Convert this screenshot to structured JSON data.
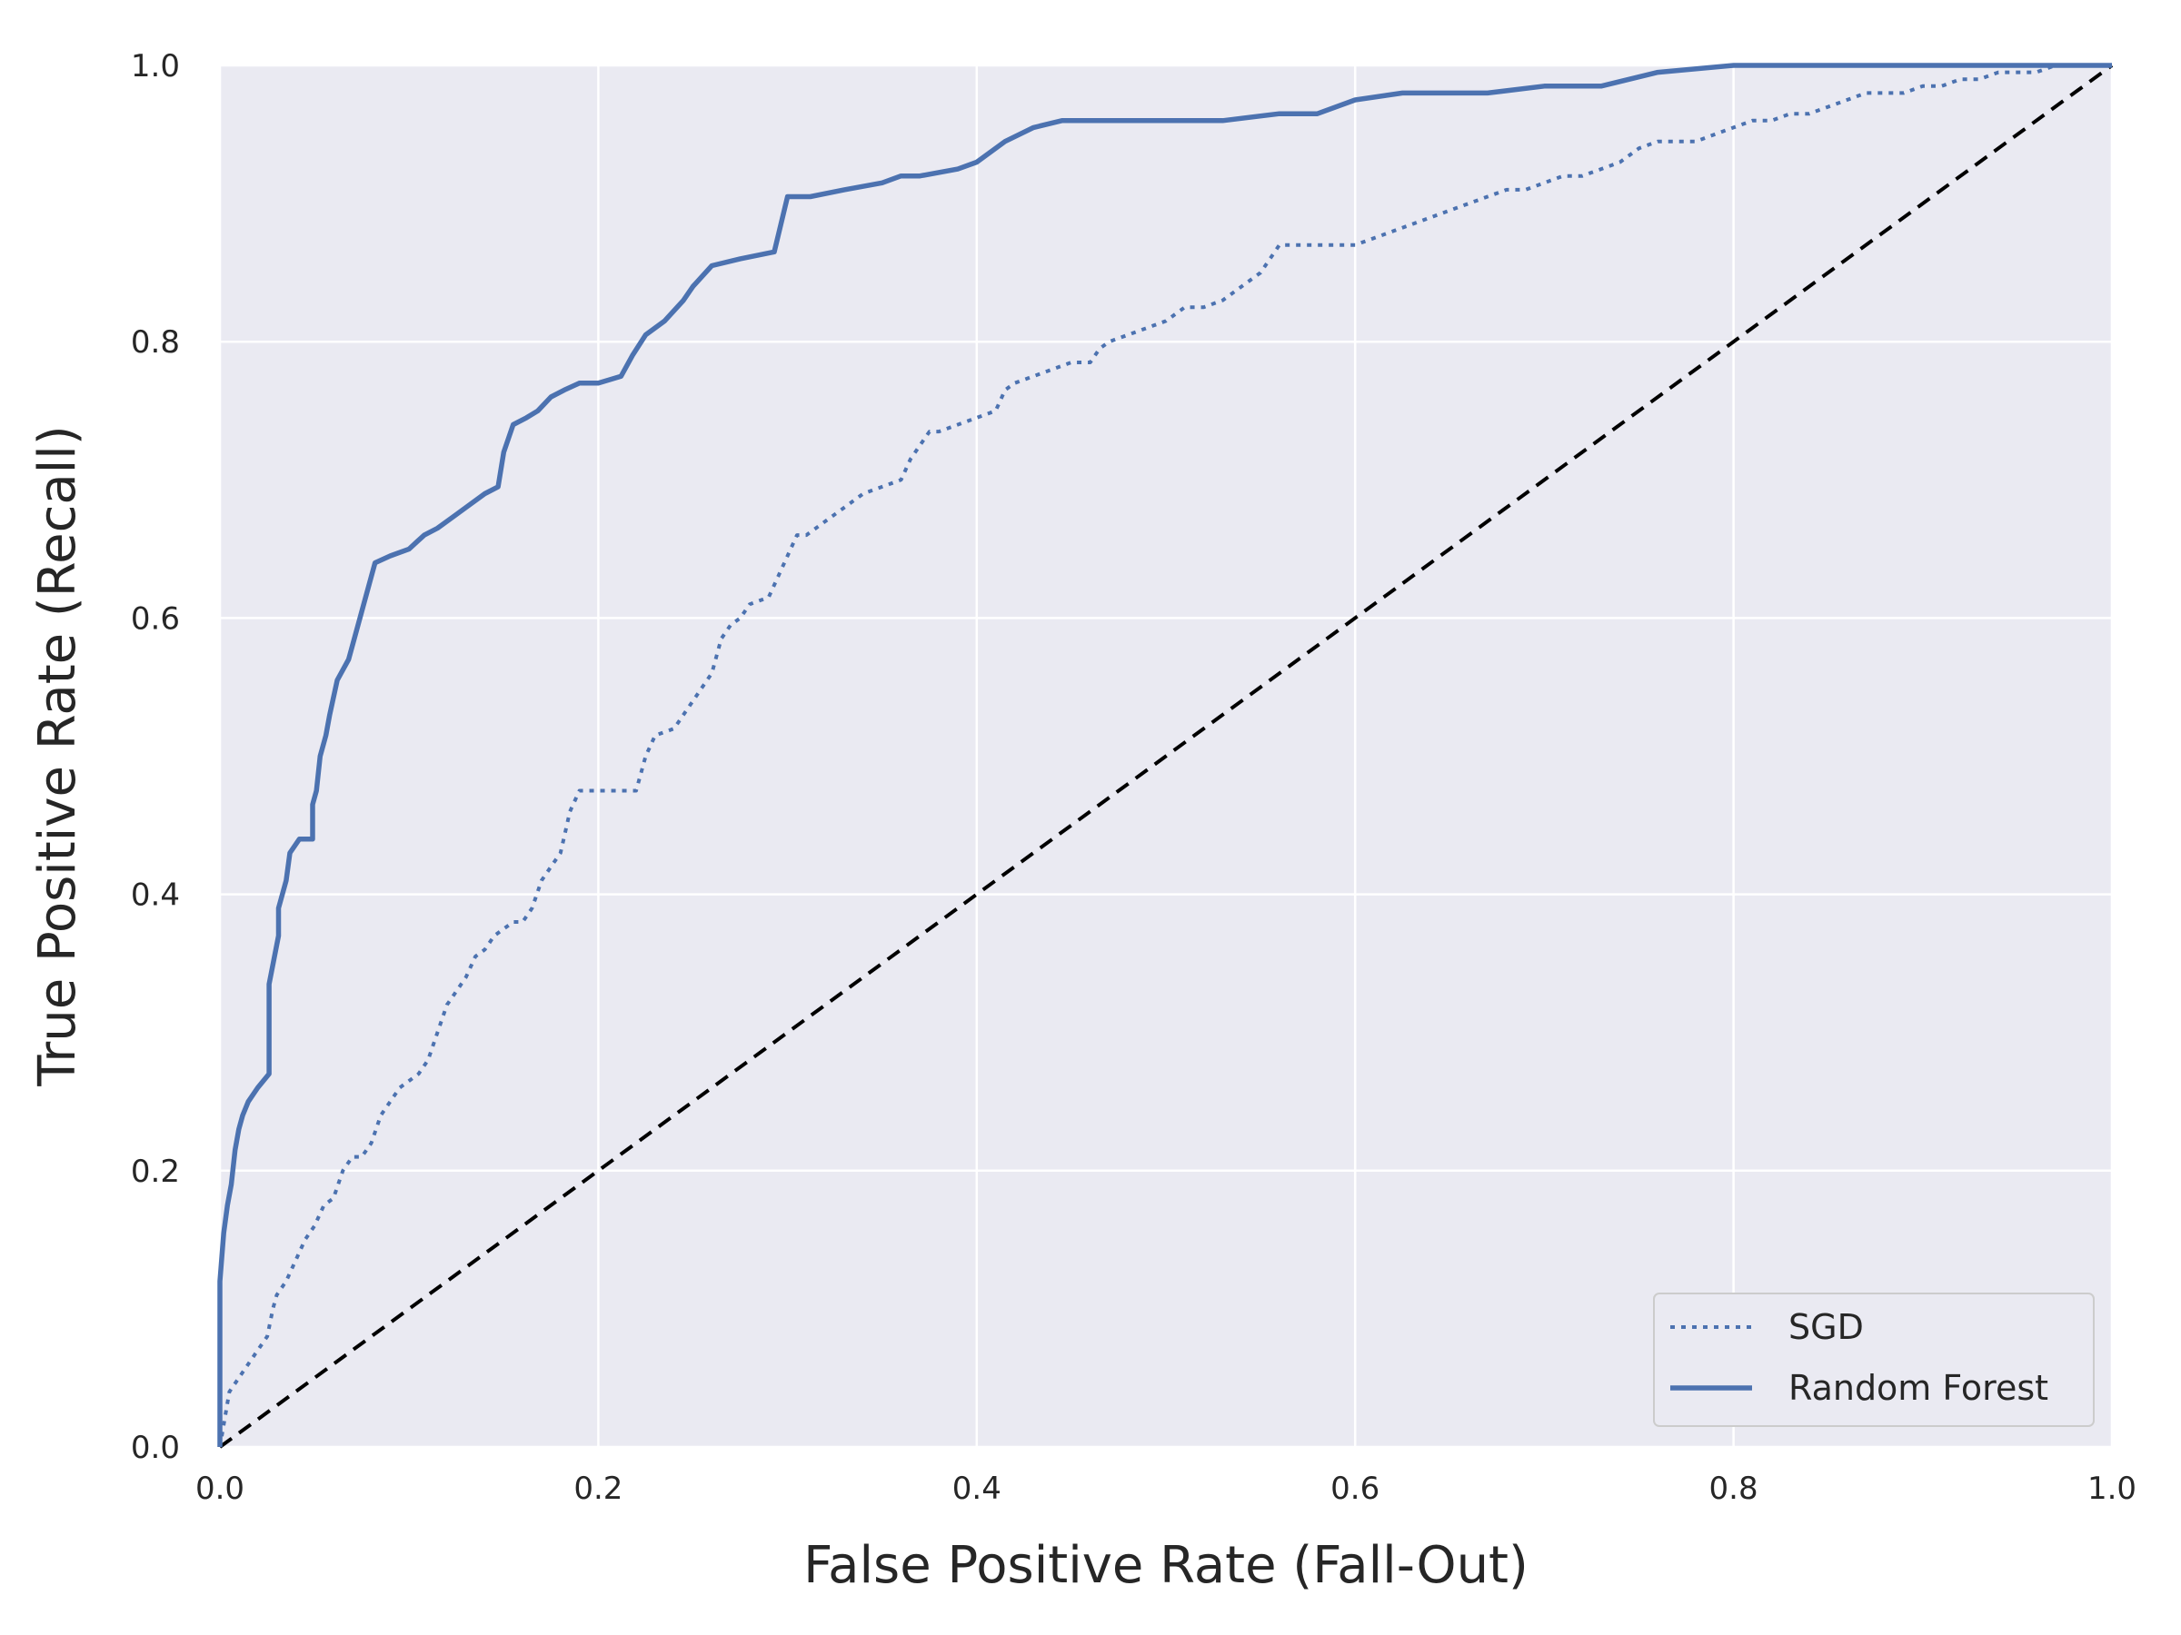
{
  "chart_data": {
    "type": "line",
    "title": "",
    "xlabel": "False Positive Rate (Fall-Out)",
    "ylabel": "True Positive Rate (Recall)",
    "xlim": [
      0,
      1
    ],
    "ylim": [
      0,
      1
    ],
    "xticks": [
      "0.0",
      "0.2",
      "0.4",
      "0.6",
      "0.8",
      "1.0"
    ],
    "yticks": [
      "0.0",
      "0.2",
      "0.4",
      "0.6",
      "0.8",
      "1.0"
    ],
    "grid": true,
    "legend_position": "lower-right",
    "colors": {
      "plot_bg": "#eaeaf2",
      "grid": "#ffffff",
      "series": "#4c72b0",
      "diagonal": "#000000"
    },
    "series": [
      {
        "name": "SGD",
        "style": "dotted",
        "x": [
          0.0,
          0.005,
          0.01,
          0.015,
          0.02,
          0.025,
          0.028,
          0.03,
          0.035,
          0.04,
          0.045,
          0.05,
          0.055,
          0.06,
          0.065,
          0.07,
          0.075,
          0.08,
          0.085,
          0.09,
          0.095,
          0.1,
          0.105,
          0.11,
          0.115,
          0.12,
          0.125,
          0.13,
          0.135,
          0.14,
          0.145,
          0.15,
          0.155,
          0.16,
          0.165,
          0.17,
          0.175,
          0.18,
          0.185,
          0.19,
          0.22,
          0.225,
          0.23,
          0.24,
          0.245,
          0.25,
          0.255,
          0.26,
          0.265,
          0.27,
          0.275,
          0.28,
          0.29,
          0.295,
          0.3,
          0.305,
          0.31,
          0.32,
          0.33,
          0.34,
          0.35,
          0.36,
          0.365,
          0.37,
          0.375,
          0.38,
          0.39,
          0.4,
          0.41,
          0.415,
          0.42,
          0.43,
          0.44,
          0.45,
          0.46,
          0.465,
          0.47,
          0.48,
          0.49,
          0.5,
          0.51,
          0.52,
          0.53,
          0.54,
          0.55,
          0.555,
          0.56,
          0.6,
          0.61,
          0.62,
          0.63,
          0.64,
          0.65,
          0.66,
          0.67,
          0.68,
          0.69,
          0.7,
          0.71,
          0.72,
          0.73,
          0.74,
          0.75,
          0.76,
          0.77,
          0.78,
          0.79,
          0.8,
          0.81,
          0.82,
          0.83,
          0.84,
          0.85,
          0.86,
          0.87,
          0.88,
          0.89,
          0.9,
          0.91,
          0.92,
          0.93,
          0.94,
          0.95,
          0.96,
          0.97,
          0.98,
          0.99,
          1.0
        ],
        "y": [
          0.0,
          0.04,
          0.05,
          0.06,
          0.07,
          0.08,
          0.1,
          0.11,
          0.12,
          0.135,
          0.15,
          0.16,
          0.175,
          0.18,
          0.2,
          0.21,
          0.21,
          0.22,
          0.24,
          0.25,
          0.26,
          0.265,
          0.27,
          0.28,
          0.3,
          0.32,
          0.33,
          0.34,
          0.355,
          0.36,
          0.37,
          0.375,
          0.38,
          0.38,
          0.39,
          0.41,
          0.42,
          0.43,
          0.46,
          0.475,
          0.475,
          0.5,
          0.515,
          0.52,
          0.53,
          0.54,
          0.55,
          0.56,
          0.585,
          0.595,
          0.6,
          0.61,
          0.615,
          0.63,
          0.645,
          0.66,
          0.66,
          0.67,
          0.68,
          0.69,
          0.695,
          0.7,
          0.715,
          0.725,
          0.735,
          0.735,
          0.74,
          0.745,
          0.75,
          0.765,
          0.77,
          0.775,
          0.78,
          0.785,
          0.785,
          0.795,
          0.8,
          0.805,
          0.81,
          0.815,
          0.825,
          0.825,
          0.83,
          0.84,
          0.85,
          0.86,
          0.87,
          0.87,
          0.875,
          0.88,
          0.885,
          0.89,
          0.895,
          0.9,
          0.905,
          0.91,
          0.91,
          0.915,
          0.92,
          0.92,
          0.925,
          0.93,
          0.94,
          0.945,
          0.945,
          0.945,
          0.95,
          0.955,
          0.96,
          0.96,
          0.965,
          0.965,
          0.97,
          0.975,
          0.98,
          0.98,
          0.98,
          0.985,
          0.985,
          0.99,
          0.99,
          0.995,
          0.995,
          0.995,
          1.0,
          1.0,
          1.0,
          1.0
        ]
      },
      {
        "name": "Random Forest",
        "style": "solid",
        "x": [
          0.0,
          0.0,
          0.002,
          0.004,
          0.006,
          0.008,
          0.01,
          0.012,
          0.015,
          0.02,
          0.026,
          0.026,
          0.031,
          0.031,
          0.035,
          0.037,
          0.042,
          0.049,
          0.049,
          0.051,
          0.053,
          0.056,
          0.058,
          0.062,
          0.068,
          0.074,
          0.082,
          0.09,
          0.1,
          0.104,
          0.108,
          0.115,
          0.125,
          0.13,
          0.14,
          0.147,
          0.15,
          0.155,
          0.162,
          0.168,
          0.175,
          0.182,
          0.19,
          0.2,
          0.212,
          0.218,
          0.225,
          0.235,
          0.245,
          0.25,
          0.26,
          0.275,
          0.293,
          0.3,
          0.312,
          0.33,
          0.35,
          0.36,
          0.37,
          0.39,
          0.4,
          0.415,
          0.43,
          0.445,
          0.46,
          0.48,
          0.5,
          0.52,
          0.53,
          0.56,
          0.58,
          0.6,
          0.625,
          0.65,
          0.67,
          0.7,
          0.73,
          0.76,
          0.8,
          0.9,
          1.0
        ],
        "y": [
          0.0,
          0.12,
          0.155,
          0.175,
          0.19,
          0.215,
          0.23,
          0.24,
          0.25,
          0.26,
          0.27,
          0.335,
          0.37,
          0.39,
          0.41,
          0.43,
          0.44,
          0.44,
          0.465,
          0.475,
          0.5,
          0.515,
          0.53,
          0.555,
          0.57,
          0.6,
          0.64,
          0.645,
          0.65,
          0.655,
          0.66,
          0.665,
          0.675,
          0.68,
          0.69,
          0.695,
          0.72,
          0.74,
          0.745,
          0.75,
          0.76,
          0.765,
          0.77,
          0.77,
          0.775,
          0.79,
          0.805,
          0.815,
          0.83,
          0.84,
          0.855,
          0.86,
          0.865,
          0.905,
          0.905,
          0.91,
          0.915,
          0.92,
          0.92,
          0.925,
          0.93,
          0.945,
          0.955,
          0.96,
          0.96,
          0.96,
          0.96,
          0.96,
          0.96,
          0.965,
          0.965,
          0.975,
          0.98,
          0.98,
          0.98,
          0.985,
          0.985,
          0.995,
          1.0,
          1.0,
          1.0
        ]
      }
    ],
    "reference_line": {
      "x": [
        0,
        1
      ],
      "y": [
        0,
        1
      ],
      "style": "dashed"
    }
  }
}
